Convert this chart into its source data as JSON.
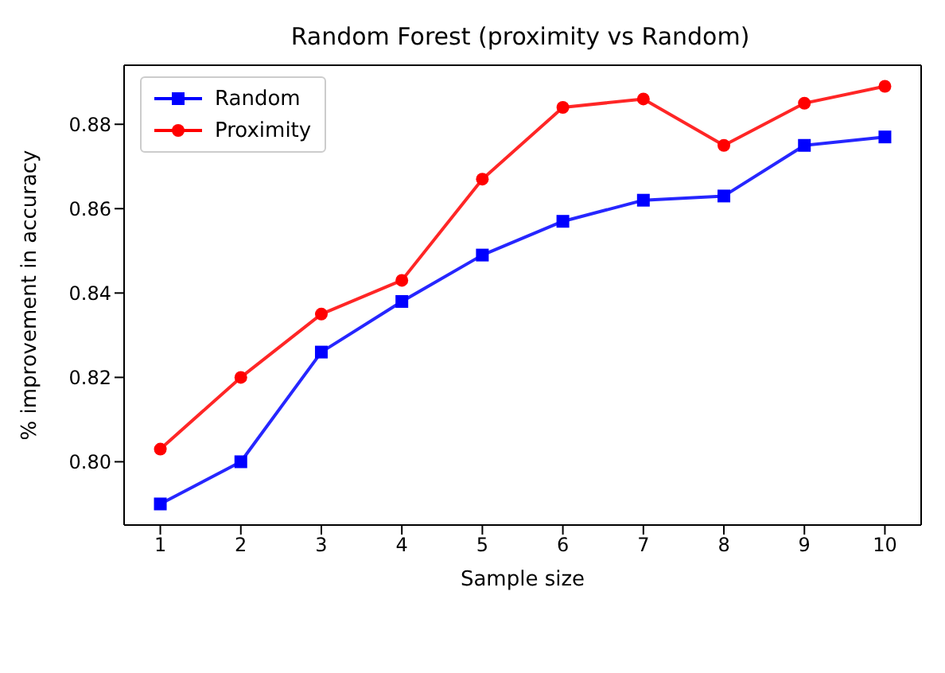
{
  "chart_data": {
    "type": "line",
    "title": "Random Forest (proximity vs Random)",
    "xlabel": "Sample size",
    "ylabel": "% improvement in accuracy",
    "x": [
      1,
      2,
      3,
      4,
      5,
      6,
      7,
      8,
      9,
      10
    ],
    "series": [
      {
        "name": "Random",
        "color": "#0000ff",
        "marker": "square",
        "values": [
          0.79,
          0.8,
          0.826,
          0.838,
          0.849,
          0.857,
          0.862,
          0.863,
          0.875,
          0.877
        ]
      },
      {
        "name": "Proximity",
        "color": "#ff0000",
        "marker": "circle",
        "values": [
          0.803,
          0.82,
          0.835,
          0.843,
          0.867,
          0.884,
          0.886,
          0.875,
          0.885,
          0.889
        ]
      }
    ],
    "xlim": [
      0.55,
      10.45
    ],
    "xticks": [
      1,
      2,
      3,
      4,
      5,
      6,
      7,
      8,
      9,
      10
    ],
    "ylim": [
      0.785,
      0.894
    ],
    "yticks": [
      {
        "value": 0.8,
        "label": "0.80"
      },
      {
        "value": 0.82,
        "label": "0.82"
      },
      {
        "value": 0.84,
        "label": "0.84"
      },
      {
        "value": 0.86,
        "label": "0.86"
      },
      {
        "value": 0.88,
        "label": "0.88"
      }
    ],
    "legend": "top left",
    "line_style": "solid"
  }
}
